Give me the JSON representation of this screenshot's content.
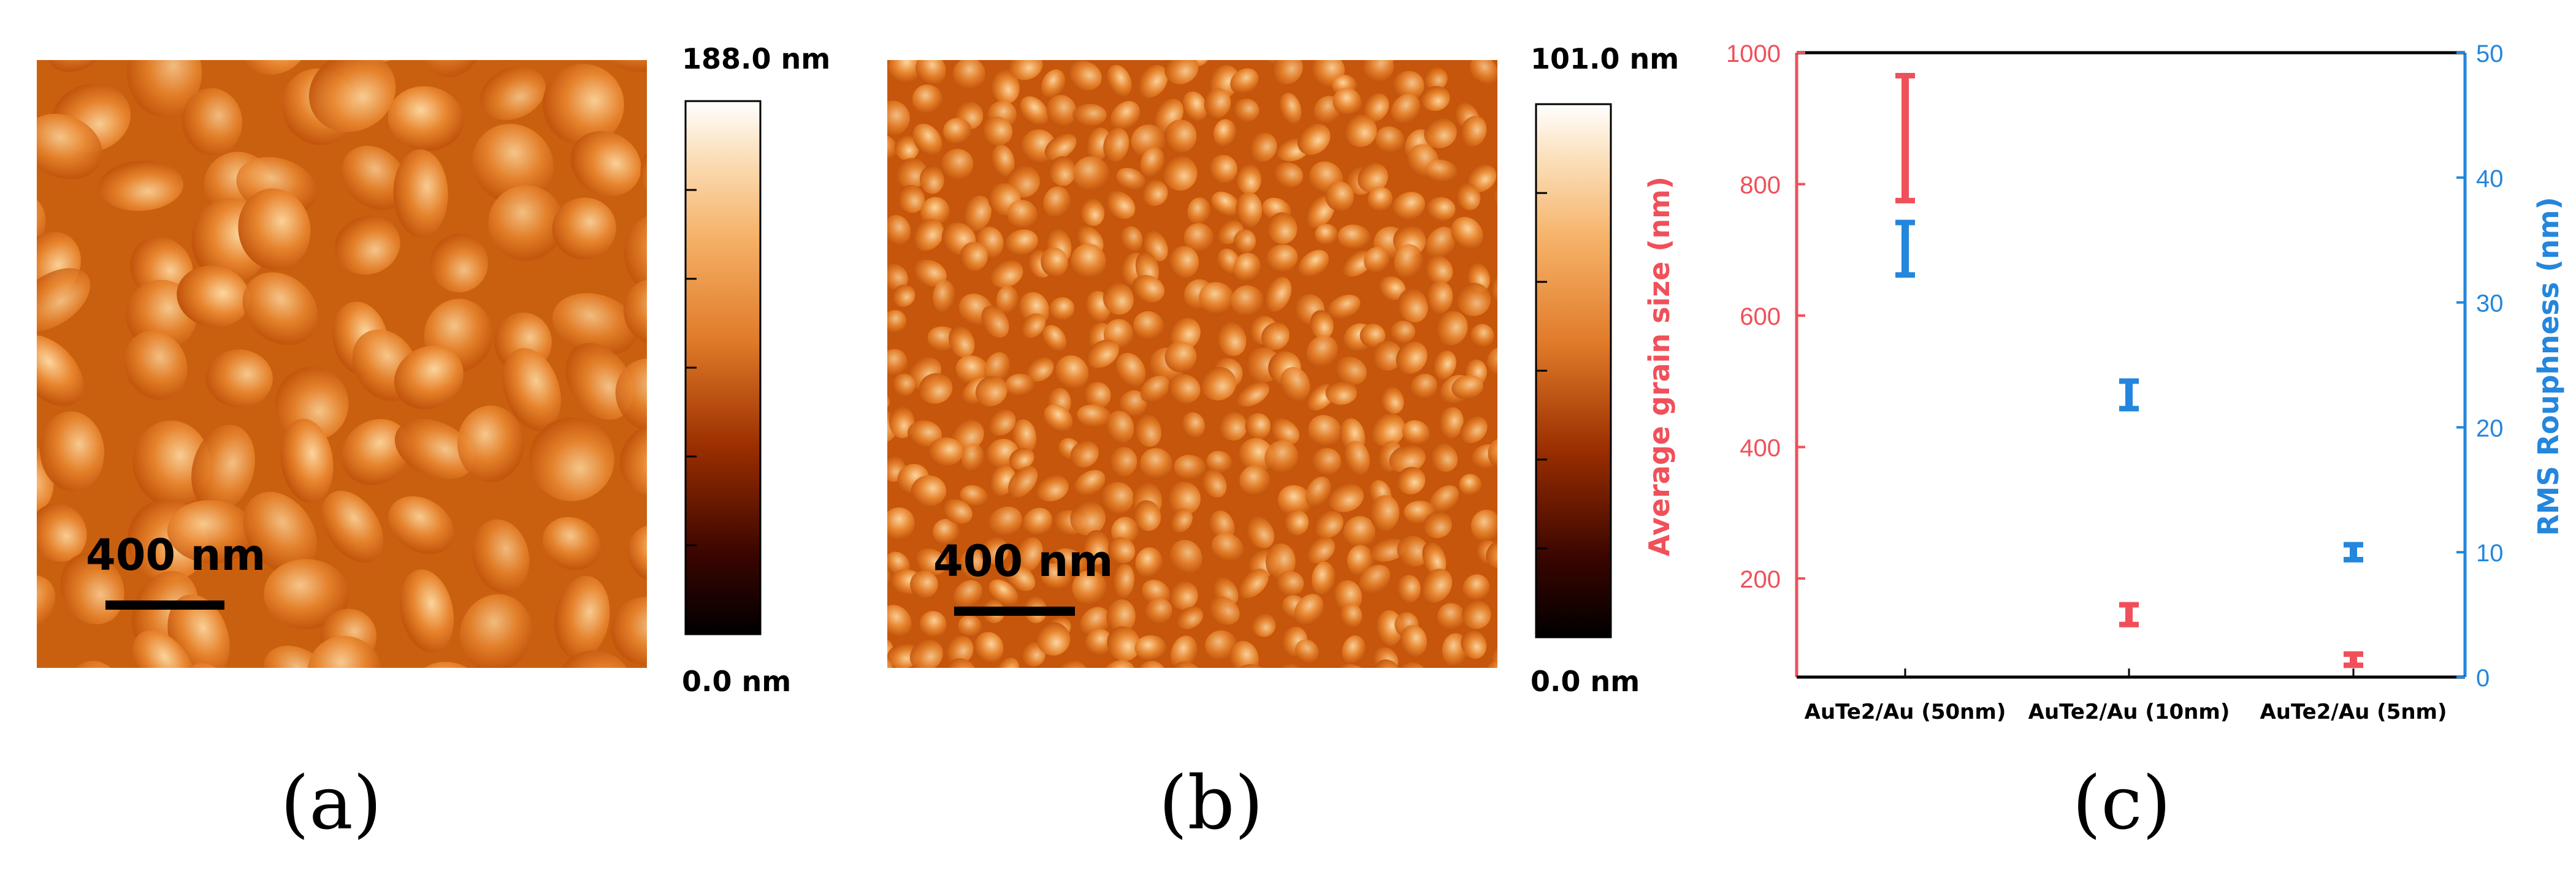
{
  "panels": {
    "a": {
      "label": "(a)",
      "scale_bar_label": "400 nm",
      "colorbar_max": "188.0 nm",
      "colorbar_min": "0.0 nm"
    },
    "b": {
      "label": "(b)",
      "scale_bar_label": "400 nm",
      "colorbar_max": "101.0 nm",
      "colorbar_min": "0.0 nm"
    },
    "c": {
      "label": "(c)"
    }
  },
  "colors": {
    "grain": "#f0505a",
    "rms": "#2486dc",
    "afm_dark": "#c2550c",
    "afm_mid": "#e8852e",
    "afm_light": "#fdd7a0"
  },
  "chart_data": {
    "type": "scatter",
    "subtype": "error-bars",
    "categories": [
      "AuTe2/Au (50nm)",
      "AuTe2/Au (10nm)",
      "AuTe2/Au (5nm)"
    ],
    "series": [
      {
        "name": "Average grain size",
        "axis": "left",
        "color": "#f0505a",
        "ranges": [
          [
            775,
            965
          ],
          [
            130,
            160
          ],
          [
            68,
            85
          ]
        ]
      },
      {
        "name": "RMS Roughness",
        "axis": "right",
        "color": "#2486dc",
        "ranges": [
          [
            32.2,
            36.4
          ],
          [
            21.5,
            23.7
          ],
          [
            9.4,
            10.6
          ]
        ]
      }
    ],
    "ylabel_left": "Average grain size (nm)",
    "ylabel_right": "RMS Rouphness (nm)",
    "ylim_left": [
      50,
      1000
    ],
    "ylim_right": [
      0,
      50
    ],
    "yticks_left": [
      200,
      400,
      600,
      800,
      1000
    ],
    "yticks_right": [
      0,
      10,
      20,
      30,
      40,
      50
    ]
  }
}
